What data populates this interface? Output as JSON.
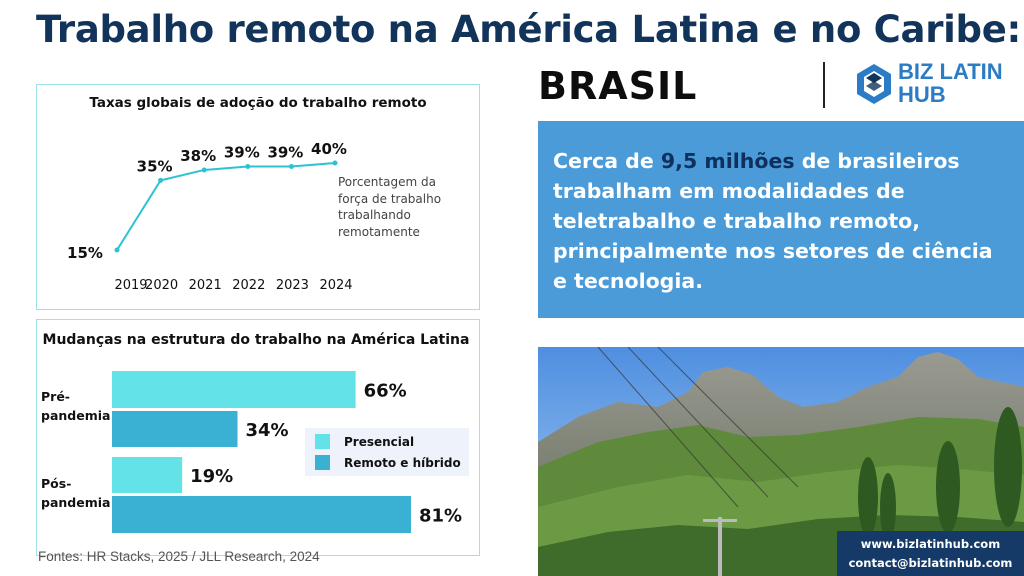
{
  "header": {
    "title": "Trabalho remoto na América Latina e no Caribe:",
    "country": "BRASIL"
  },
  "logo": {
    "line1": "BIZ LATIN",
    "line2": "HUB",
    "icon": "bizlatinhub-icon",
    "color": "#2b7cc4"
  },
  "chart_data": [
    {
      "type": "line",
      "title": "Taxas globais de adoção do trabalho remoto",
      "x": [
        "2019",
        "2020",
        "2021",
        "2022",
        "2023",
        "2024"
      ],
      "series": [
        {
          "values": [
            15,
            35,
            38,
            39,
            39,
            40
          ],
          "labels": [
            "15%",
            "35%",
            "38%",
            "39%",
            "39%",
            "40%"
          ]
        }
      ],
      "annotation": "Porcentagem da força de trabalho trabalhando remotamente",
      "ylim": [
        0,
        45
      ],
      "grid": false,
      "color": "#2cc3cf"
    },
    {
      "type": "bar",
      "orientation": "horizontal",
      "title": "Mudanças na estrutura do trabalho na América Latina",
      "categories": [
        "Pré-pandemia",
        "Pós-pandemia"
      ],
      "category_lines": [
        [
          "Pré-",
          "pandemia"
        ],
        [
          "Pós-",
          "pandemia"
        ]
      ],
      "series": [
        {
          "name": "Presencial",
          "values": [
            66,
            19
          ],
          "labels": [
            "66%",
            "19%"
          ],
          "color": "#63e3e8"
        },
        {
          "name": "Remoto e híbrido",
          "values": [
            34,
            81
          ],
          "labels": [
            "34%",
            "81%"
          ],
          "color": "#3ab0d2"
        }
      ],
      "xlim": [
        0,
        100
      ],
      "legend": "right"
    }
  ],
  "sources": "Fontes: HR Stacks, 2025 / JLL Research, 2024",
  "info": {
    "before": "Cerca de ",
    "highlight": "9,5 milhões",
    "after": " de brasileiros trabalham em modalidades de teletrabalho e trabalho remoto, principalmente nos setores de ciência e tecnologia.",
    "background": "#4a9bd8",
    "highlight_color": "#0f2f5c"
  },
  "contact": {
    "website": "www.bizlatinhub.com",
    "email": "contact@bizlatinhub.com"
  }
}
